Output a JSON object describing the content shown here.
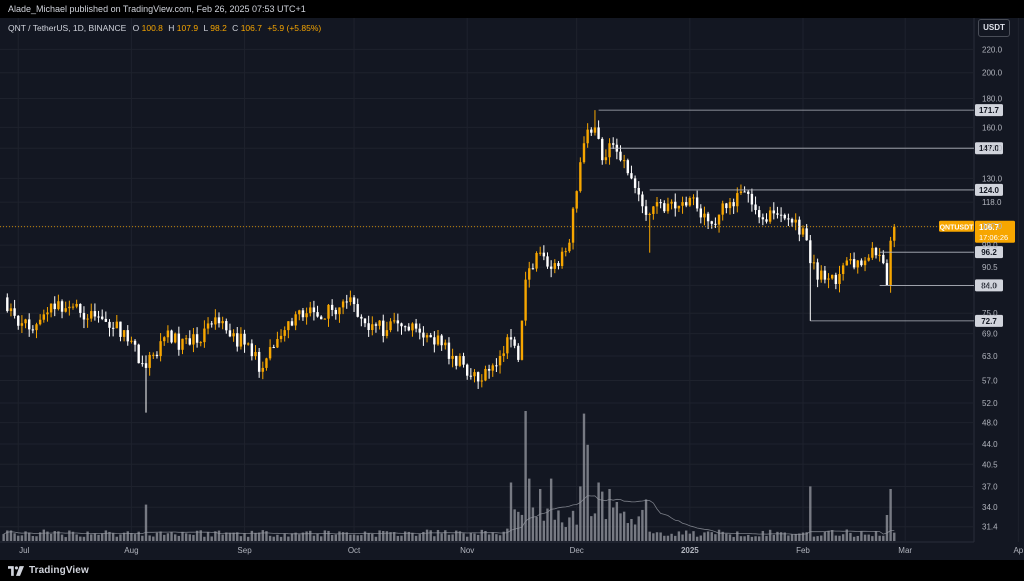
{
  "publisher": "Alade_Michael published on TradingView.com, Feb 26, 2025 07:53 UTC+1",
  "currency": "USDT",
  "footer_brand": "TradingView",
  "legend": {
    "symbol": "QNT / TetherUS, 1D, BINANCE",
    "o_label": "O",
    "o": "100.8",
    "h_label": "H",
    "h": "107.9",
    "l_label": "L",
    "l": "98.2",
    "c_label": "C",
    "c": "106.7",
    "change": "+5.9 (+5.85%)"
  },
  "colors": {
    "background": "#131722",
    "up": "#f7a600",
    "down": "#ffffff",
    "volume": "#8a8c94",
    "level_line": "#b2b5be",
    "price_tag": "#f7a600",
    "grid": "#1e222d",
    "axis_text": "#b2b5be"
  },
  "chart_data": {
    "type": "candlestick",
    "scale": "log",
    "ylim": [
      29.5,
      250
    ],
    "y_ticks": [
      "31.4",
      "34.0",
      "37.0",
      "40.5",
      "44.0",
      "48.0",
      "52.0",
      "57.0",
      "63.0",
      "69.0",
      "75.0",
      "84.0",
      "90.5",
      "99.0",
      "107.0",
      "118.0",
      "130.0",
      "147.0",
      "160.0",
      "180.0",
      "200.0",
      "220.0"
    ],
    "x_ticks": [
      "Jul",
      "Aug",
      "Sep",
      "Oct",
      "Nov",
      "Dec",
      "2025",
      "Feb",
      "Mar",
      "Ap"
    ],
    "bold_x_ticks": [
      "2025"
    ],
    "price_levels": [
      {
        "label": "171.7",
        "value": 171.7,
        "from": "2024-12-07"
      },
      {
        "label": "147.0",
        "value": 147.0,
        "from": "2024-12-10"
      },
      {
        "label": "124.0",
        "value": 124.0,
        "from": "2024-12-21"
      },
      {
        "label": "96.2",
        "value": 96.2,
        "from": "2025-02-22"
      },
      {
        "label": "84.0",
        "value": 84.0,
        "from": "2025-02-22"
      },
      {
        "label": "72.7",
        "value": 72.7,
        "from": "2025-02-03"
      }
    ],
    "current_price": {
      "symbol": "QNTUSDT",
      "price": "106.7",
      "countdown": "17:06:26",
      "value": 106.7
    },
    "anchors": [
      [
        "2024-06-27",
        80
      ],
      [
        "2024-07-02",
        72
      ],
      [
        "2024-07-05",
        70
      ],
      [
        "2024-07-10",
        78
      ],
      [
        "2024-07-15",
        77
      ],
      [
        "2024-07-22",
        74
      ],
      [
        "2024-07-30",
        70
      ],
      [
        "2024-08-05",
        60
      ],
      [
        "2024-08-10",
        68
      ],
      [
        "2024-08-17",
        66
      ],
      [
        "2024-08-25",
        72
      ],
      [
        "2024-09-01",
        66
      ],
      [
        "2024-09-06",
        60
      ],
      [
        "2024-09-12",
        70
      ],
      [
        "2024-09-18",
        75
      ],
      [
        "2024-09-25",
        76
      ],
      [
        "2024-09-30",
        80
      ],
      [
        "2024-10-04",
        72
      ],
      [
        "2024-10-10",
        70
      ],
      [
        "2024-10-15",
        71
      ],
      [
        "2024-10-22",
        68
      ],
      [
        "2024-10-28",
        63
      ],
      [
        "2024-11-02",
        58
      ],
      [
        "2024-11-05",
        57
      ],
      [
        "2024-11-10",
        63
      ],
      [
        "2024-11-12",
        68
      ],
      [
        "2024-11-15",
        62
      ],
      [
        "2024-11-17",
        86
      ],
      [
        "2024-11-21",
        96
      ],
      [
        "2024-11-25",
        92
      ],
      [
        "2024-11-29",
        100
      ],
      [
        "2024-12-03",
        150
      ],
      [
        "2024-12-06",
        160
      ],
      [
        "2024-12-08",
        140
      ],
      [
        "2024-12-10",
        150
      ],
      [
        "2024-12-14",
        140
      ],
      [
        "2024-12-17",
        125
      ],
      [
        "2024-12-20",
        112
      ],
      [
        "2024-12-23",
        118
      ],
      [
        "2024-12-28",
        115
      ],
      [
        "2025-01-01",
        120
      ],
      [
        "2025-01-07",
        108
      ],
      [
        "2025-01-12",
        118
      ],
      [
        "2025-01-17",
        122
      ],
      [
        "2025-01-21",
        110
      ],
      [
        "2025-01-26",
        112
      ],
      [
        "2025-02-01",
        106
      ],
      [
        "2025-02-03",
        92
      ],
      [
        "2025-02-07",
        86
      ],
      [
        "2025-02-11",
        88
      ],
      [
        "2025-02-16",
        93
      ],
      [
        "2025-02-21",
        95
      ],
      [
        "2025-02-23",
        92
      ],
      [
        "2025-02-24",
        84
      ],
      [
        "2025-02-25",
        100.8
      ],
      [
        "2025-02-26",
        106.7
      ]
    ],
    "volume_spikes": [
      {
        "date": "2024-08-05",
        "v": 0.28
      },
      {
        "date": "2024-11-13",
        "v": 0.45
      },
      {
        "date": "2024-11-17",
        "v": 1.0
      },
      {
        "date": "2024-11-18",
        "v": 0.48
      },
      {
        "date": "2024-11-21",
        "v": 0.4
      },
      {
        "date": "2024-11-24",
        "v": 0.48
      },
      {
        "date": "2024-12-02",
        "v": 0.42
      },
      {
        "date": "2024-12-03",
        "v": 0.98
      },
      {
        "date": "2024-12-04",
        "v": 0.74
      },
      {
        "date": "2024-12-07",
        "v": 0.45
      },
      {
        "date": "2024-12-08",
        "v": 0.38
      },
      {
        "date": "2024-12-10",
        "v": 0.4
      },
      {
        "date": "2024-12-12",
        "v": 0.3
      },
      {
        "date": "2024-12-20",
        "v": 0.32
      },
      {
        "date": "2025-02-03",
        "v": 0.42
      },
      {
        "date": "2025-02-24",
        "v": 0.2
      },
      {
        "date": "2025-02-25",
        "v": 0.4
      }
    ]
  }
}
